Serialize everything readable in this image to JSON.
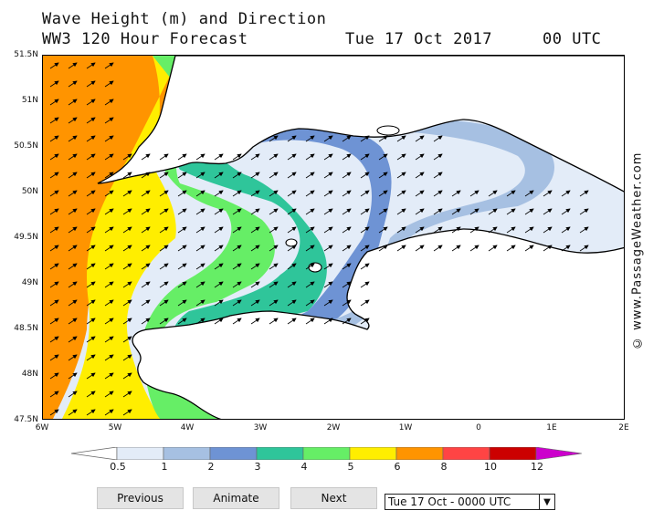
{
  "header": {
    "title_line1": "Wave Height (m) and Direction",
    "title_line2": "WW3 120 Hour Forecast",
    "date": "Tue 17 Oct 2017",
    "time": "00 UTC"
  },
  "map": {
    "latitude_labels": [
      "51.5N",
      "51N",
      "50.5N",
      "50N",
      "49.5N",
      "49N",
      "48.5N",
      "48N",
      "47.5N"
    ],
    "longitude_labels": [
      "6W",
      "5W",
      "4W",
      "3W",
      "2W",
      "1W",
      "0",
      "1E",
      "2E"
    ],
    "land_color": "#ffffff",
    "coastline_color": "#000000",
    "arrow_direction": "towards north-east",
    "colors": {
      "0-0.5": "#ffffff",
      "0.5-1": "#e3ecf8",
      "1-2": "#a6c0e2",
      "2-3": "#6e93d4",
      "3-4": "#2fc59a",
      "4-5": "#66ee66",
      "5-6": "#ffee00",
      "6-8": "#ff9400"
    }
  },
  "legend": {
    "labels": [
      "0.5",
      "1",
      "2",
      "3",
      "4",
      "5",
      "6",
      "8",
      "10",
      "12"
    ],
    "colors": [
      "#ffffff",
      "#e3ecf8",
      "#a6c0e2",
      "#6e93d4",
      "#2fc59a",
      "#66ee66",
      "#ffee00",
      "#ff9400",
      "#ff4444",
      "#cc0000",
      "#cc00cc"
    ]
  },
  "copyright": "© www.PassageWeather.com",
  "controls": {
    "previous_label": "Previous",
    "animate_label": "Animate",
    "next_label": "Next",
    "selected_time": "Tue 17 Oct - 0000 UTC"
  }
}
